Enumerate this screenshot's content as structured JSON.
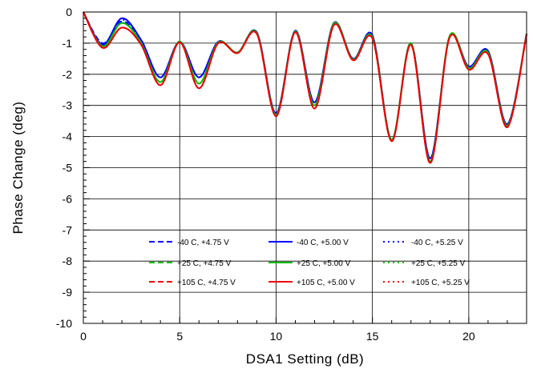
{
  "chart_data": {
    "type": "line",
    "xlabel": "DSA1 Setting (dB)",
    "ylabel": "Phase Change (deg)",
    "xlim": [
      0,
      23
    ],
    "ylim": [
      -10,
      0
    ],
    "x_ticks": [
      0,
      5,
      10,
      15,
      20
    ],
    "y_ticks": [
      0,
      -1,
      -2,
      -3,
      -4,
      -5,
      -6,
      -7,
      -8,
      -9,
      -10
    ],
    "x_tick_labels": [
      "0",
      "5",
      "10",
      "15",
      "20"
    ],
    "y_tick_labels": [
      "0",
      "-1",
      "-2",
      "-3",
      "-4",
      "-5",
      "-6",
      "-7",
      "-8",
      "-9",
      "-10"
    ],
    "grid": true,
    "legend_position": "bottom-center",
    "x": [
      0,
      1,
      2,
      3,
      4,
      5,
      6,
      7,
      8,
      9,
      10,
      11,
      12,
      13,
      14,
      15,
      16,
      17,
      18,
      19,
      20,
      21,
      22,
      23
    ],
    "series": [
      {
        "name": "-40 C, +4.75 V",
        "color": "#0000ff",
        "style": "dashed",
        "values": [
          0,
          -1.0,
          -0.3,
          -0.9,
          -2.1,
          -0.95,
          -2.1,
          -0.95,
          -1.3,
          -0.65,
          -3.25,
          -0.6,
          -2.9,
          -0.35,
          -1.5,
          -0.75,
          -4.1,
          -1.0,
          -4.7,
          -0.8,
          -1.75,
          -1.25,
          -3.6,
          -0.7
        ]
      },
      {
        "name": "-40 C, +5.00 V",
        "color": "#0000ff",
        "style": "solid",
        "values": [
          0,
          -1.05,
          -0.2,
          -0.9,
          -2.1,
          -0.95,
          -2.1,
          -0.95,
          -1.3,
          -0.65,
          -3.25,
          -0.6,
          -2.9,
          -0.35,
          -1.5,
          -0.75,
          -4.1,
          -1.0,
          -4.7,
          -0.8,
          -1.75,
          -1.25,
          -3.6,
          -0.7
        ]
      },
      {
        "name": "-40 C, +5.25 V",
        "color": "#0000ff",
        "style": "dotted",
        "values": [
          0,
          -1.05,
          -0.25,
          -0.9,
          -2.1,
          -0.95,
          -2.1,
          -0.95,
          -1.3,
          -0.65,
          -3.25,
          -0.6,
          -2.9,
          -0.35,
          -1.5,
          -0.75,
          -4.1,
          -1.0,
          -4.7,
          -0.8,
          -1.75,
          -1.25,
          -3.6,
          -0.7
        ]
      },
      {
        "name": "+25 C, +4.75 V",
        "color": "#00bb00",
        "style": "dashed",
        "values": [
          0,
          -1.1,
          -0.35,
          -1.0,
          -2.25,
          -0.95,
          -2.3,
          -0.97,
          -1.3,
          -0.67,
          -3.3,
          -0.62,
          -3.0,
          -0.37,
          -1.52,
          -0.8,
          -4.1,
          -1.0,
          -4.8,
          -0.78,
          -1.8,
          -1.3,
          -3.65,
          -0.7
        ]
      },
      {
        "name": "+25 C, +5.00 V",
        "color": "#00bb00",
        "style": "solid",
        "values": [
          0,
          -1.1,
          -0.35,
          -1.0,
          -2.25,
          -0.95,
          -2.3,
          -0.97,
          -1.3,
          -0.67,
          -3.3,
          -0.62,
          -3.0,
          -0.37,
          -1.52,
          -0.8,
          -4.1,
          -1.0,
          -4.8,
          -0.78,
          -1.8,
          -1.3,
          -3.65,
          -0.7
        ]
      },
      {
        "name": "+25 C, +5.25 V",
        "color": "#00bb00",
        "style": "dotted",
        "values": [
          0,
          -1.1,
          -0.35,
          -1.0,
          -2.25,
          -0.95,
          -2.3,
          -0.97,
          -1.3,
          -0.67,
          -3.3,
          -0.62,
          -3.0,
          -0.37,
          -1.52,
          -0.8,
          -4.1,
          -1.0,
          -4.8,
          -0.78,
          -1.8,
          -1.3,
          -3.65,
          -0.7
        ]
      },
      {
        "name": "+105 C, +4.75 V",
        "color": "#ee0000",
        "style": "dashed",
        "values": [
          0,
          -1.15,
          -0.5,
          -1.05,
          -2.35,
          -0.97,
          -2.45,
          -1.0,
          -1.32,
          -0.7,
          -3.35,
          -0.65,
          -3.1,
          -0.42,
          -1.55,
          -0.85,
          -4.15,
          -1.05,
          -4.85,
          -0.83,
          -1.85,
          -1.35,
          -3.7,
          -0.72
        ]
      },
      {
        "name": "+105 C, +5.00 V",
        "color": "#ee0000",
        "style": "solid",
        "values": [
          0,
          -1.15,
          -0.5,
          -1.05,
          -2.35,
          -0.97,
          -2.45,
          -1.0,
          -1.32,
          -0.7,
          -3.35,
          -0.65,
          -3.1,
          -0.42,
          -1.55,
          -0.85,
          -4.15,
          -1.05,
          -4.85,
          -0.83,
          -1.85,
          -1.35,
          -3.7,
          -0.72
        ]
      },
      {
        "name": "+105 C, +5.25 V",
        "color": "#ee0000",
        "style": "dotted",
        "values": [
          0,
          -1.15,
          -0.5,
          -1.05,
          -2.35,
          -0.97,
          -2.45,
          -1.0,
          -1.32,
          -0.7,
          -3.35,
          -0.65,
          -3.1,
          -0.42,
          -1.55,
          -0.85,
          -4.15,
          -1.05,
          -4.85,
          -0.83,
          -1.85,
          -1.35,
          -3.7,
          -0.72
        ]
      }
    ]
  }
}
